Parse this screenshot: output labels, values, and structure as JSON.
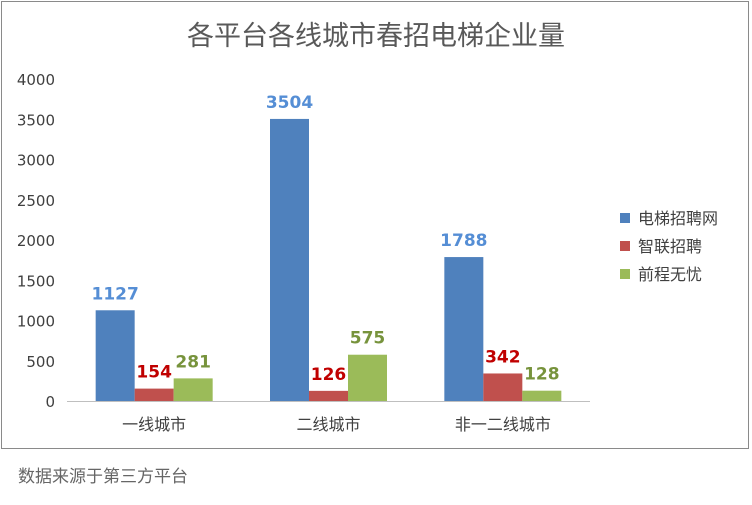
{
  "chart_data": {
    "type": "bar",
    "title": "各平台各线城市春招电梯企业量",
    "categories": [
      "一线城市",
      "二线城市",
      "非一二线城市"
    ],
    "series": [
      {
        "name": "电梯招聘网",
        "values": [
          1127,
          3504,
          1788
        ],
        "color": "#4f81bd"
      },
      {
        "name": "智联招聘",
        "values": [
          154,
          126,
          342
        ],
        "color": "#c0504d"
      },
      {
        "name": "前程无忧",
        "values": [
          281,
          575,
          128
        ],
        "color": "#9bbb59"
      }
    ],
    "label_colors": [
      "#558ed5",
      "#c00000",
      "#77933c"
    ],
    "ylim": [
      0,
      4000
    ],
    "yticks": [
      0,
      500,
      1000,
      1500,
      2000,
      2500,
      3000,
      3500,
      4000
    ],
    "grid": false,
    "legend": "right",
    "xlabel": "",
    "ylabel": ""
  },
  "source": "数据来源于第三方平台"
}
